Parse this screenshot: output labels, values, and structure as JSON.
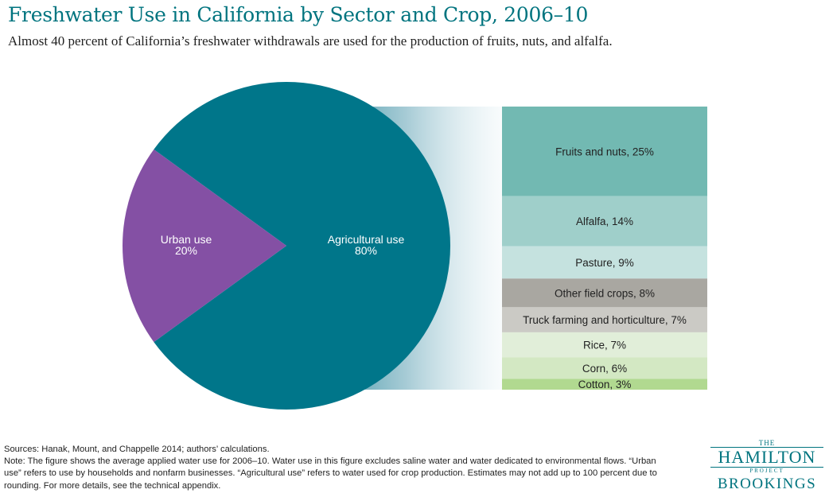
{
  "title": "Freshwater Use in California by Sector and Crop, 2006–10",
  "subtitle": "Almost 40 percent of California’s freshwater withdrawals are used for the production of fruits, nuts, and alfalfa.",
  "chart_data": [
    {
      "type": "pie",
      "slices": [
        {
          "label": "Agricultural use",
          "value_label": "80%",
          "value": 80,
          "color": "#00768a"
        },
        {
          "label": "Urban use",
          "value_label": "20%",
          "value": 20,
          "color": "#8450a4"
        }
      ]
    },
    {
      "type": "bar",
      "stacked": true,
      "categories": [
        "Fruits and nuts, 25%",
        "Alfalfa,  14%",
        "Pasture, 9%",
        "Other field crops, 8%",
        "Truck farming and horticulture, 7%",
        "Rice, 7%",
        "Corn, 6%",
        "Cotton, 3%"
      ],
      "values": [
        25,
        14,
        9,
        8,
        7,
        7,
        6,
        3
      ],
      "colors": [
        "#72b9b2",
        "#9fcfca",
        "#c5e2df",
        "#a9a7a1",
        "#cbcac5",
        "#e1eed9",
        "#d3e8c3",
        "#b1d990"
      ]
    }
  ],
  "footnotes": {
    "sources": "Sources: Hanak, Mount, and Chappelle 2014; authors’ calculations.",
    "note": "Note: The figure shows the average applied water use for 2006–10. Water use in this figure excludes saline water and water dedicated to environmental flows. “Urban use” refers to use by households and nonfarm businesses. “Agricultural use” refers to water used for crop production. Estimates may not add up to 100 percent due to rounding. For more details, see the technical appendix."
  },
  "logo": {
    "the": "THE",
    "hamilton": "HAMILTON",
    "project": "PROJECT",
    "brookings": "BROOKINGS"
  }
}
